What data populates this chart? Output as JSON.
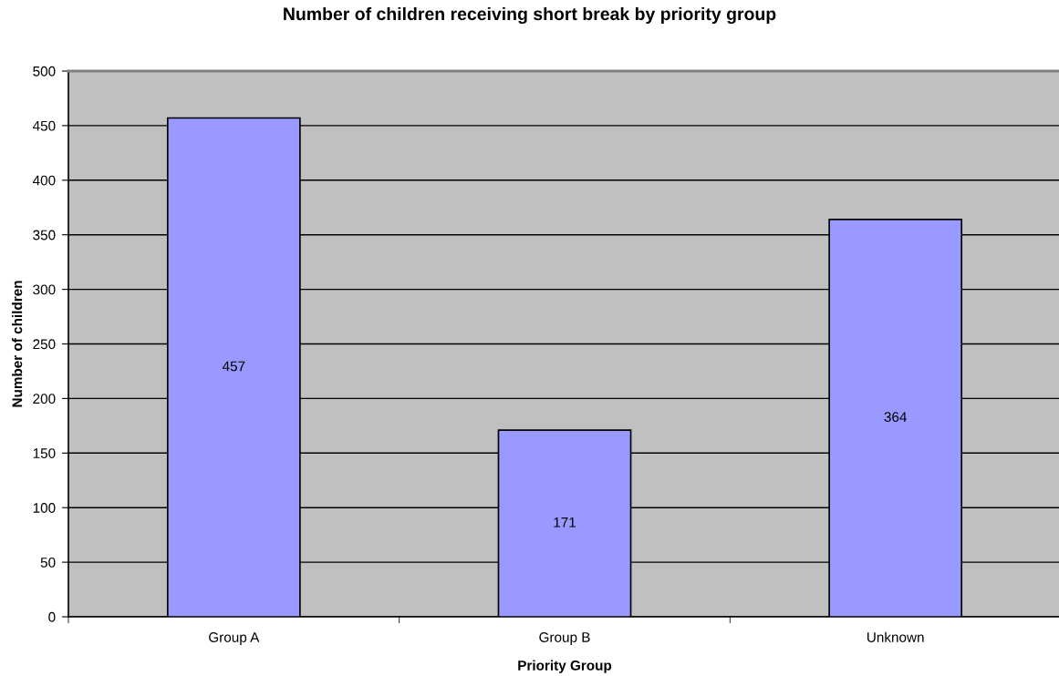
{
  "chart_data": {
    "type": "bar",
    "title": "Number of children receiving short break by priority group",
    "xlabel": "Priority Group",
    "ylabel": "Number of children",
    "categories": [
      "Group A",
      "Group B",
      "Unknown"
    ],
    "values": [
      457,
      171,
      364
    ],
    "color": "#9999ff",
    "ylim": [
      0,
      500
    ],
    "yticks": [
      0,
      50,
      100,
      150,
      200,
      250,
      300,
      350,
      400,
      450,
      500
    ],
    "grid": "y",
    "data_labels": true
  }
}
